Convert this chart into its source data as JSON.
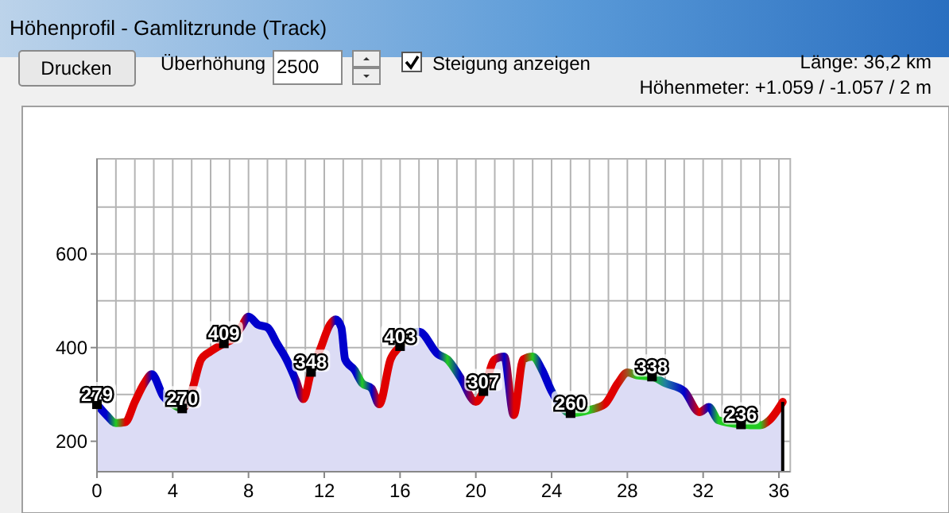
{
  "chart_data": {
    "type": "area",
    "title": "Höhenprofil - Gamlitzrunde (Track)",
    "annotations": [
      "Drucken",
      "Überhöhung",
      "2500",
      "Steigung anzeigen",
      "Länge: 36,2 km",
      "Höhenmeter: +1.059 / -1.057 / 2 m",
      {
        "text": "279",
        "x": 0,
        "y": 279
      },
      {
        "text": "270",
        "x": 4.5,
        "y": 270
      },
      {
        "text": "409",
        "x": 6.7,
        "y": 409
      },
      {
        "text": "348",
        "x": 11.3,
        "y": 348
      },
      {
        "text": "403",
        "x": 16,
        "y": 403
      },
      {
        "text": "307",
        "x": 20.4,
        "y": 307
      },
      {
        "text": "260",
        "x": 25,
        "y": 260
      },
      {
        "text": "338",
        "x": 29.3,
        "y": 338
      },
      {
        "text": "236",
        "x": 34,
        "y": 236
      }
    ],
    "x": [
      0,
      0.5,
      1,
      1.5,
      2,
      2.5,
      2.9,
      3.5,
      4,
      4.5,
      5,
      5.5,
      6,
      6.7,
      7.2,
      7.6,
      8,
      8.5,
      9,
      9.5,
      10,
      10.5,
      10.9,
      11.3,
      11.8,
      12.3,
      12.6,
      12.9,
      13.1,
      13.6,
      14,
      14.5,
      14.9,
      15.5,
      16,
      16.6,
      17,
      18,
      18.5,
      19.2,
      20,
      20.4,
      21,
      21.5,
      22,
      22.5,
      23,
      23.5,
      24,
      25,
      26,
      26.8,
      27.5,
      28,
      28.5,
      29.3,
      30,
      31,
      31.8,
      32.3,
      32.8,
      34,
      35,
      35.5,
      36.2
    ],
    "series": [
      {
        "color": "#dcdcf5",
        "values": [
          279,
          256,
          239,
          241,
          284,
          324,
          343,
          296,
          279,
          270,
          307,
          375,
          392,
          409,
          420,
          443,
          466,
          449,
          443,
          409,
          375,
          330,
          290,
          348,
          398,
          449,
          460,
          443,
          375,
          352,
          324,
          313,
          279,
          375,
          403,
          432,
          434,
          386,
          375,
          335,
          284,
          307,
          375,
          381,
          256,
          375,
          381,
          352,
          307,
          260,
          267,
          279,
          324,
          347,
          341,
          338,
          324,
          307,
          262,
          273,
          245,
          236,
          234,
          245,
          284
        ],
        "colors": [
          "#0000cc",
          "#0000cc",
          "#22cc22",
          "#e00000",
          "#e00000",
          "#e00000",
          "#0000cc",
          "#0000cc",
          "#22cc22",
          "#202020",
          "#e00000",
          "#e00000",
          "#e00000",
          "#e00000",
          "#e00000",
          "#e00000",
          "#0000cc",
          "#0000cc",
          "#0000cc",
          "#0000cc",
          "#0000cc",
          "#0000cc",
          "#e00000",
          "#e00000",
          "#e00000",
          "#e00000",
          "#0000cc",
          "#0000cc",
          "#0000cc",
          "#0000cc",
          "#22cc22",
          "#0000cc",
          "#e00000",
          "#e00000",
          "#e00000",
          "#22cc22",
          "#0000cc",
          "#0000cc",
          "#22cc22",
          "#0000cc",
          "#e00000",
          "#e00000",
          "#e00000",
          "#0000cc",
          "#e00000",
          "#e00000",
          "#22cc22",
          "#0000cc",
          "#0000cc",
          "#22cc22",
          "#22cc22",
          "#e00000",
          "#e00000",
          "#a05020",
          "#22cc22",
          "#22cc22",
          "#2080a0",
          "#0000cc",
          "#e00000",
          "#0000cc",
          "#22cc22",
          "#22cc22",
          "#22cc22",
          "#e00000",
          "#e00000"
        ]
      }
    ],
    "ref_lines": [
      {
        "axis": "x",
        "value": 36.2,
        "color": "#000000"
      }
    ],
    "xlim": [
      0,
      36.6
    ],
    "ylim": [
      135,
      803
    ],
    "xticks": [
      0,
      {
        "value": 1,
        "label": null
      },
      {
        "value": 2,
        "label": null
      },
      {
        "value": 3,
        "label": null
      },
      4,
      {
        "value": 5,
        "label": null
      },
      {
        "value": 6,
        "label": null
      },
      {
        "value": 7,
        "label": null
      },
      8,
      {
        "value": 9,
        "label": null
      },
      {
        "value": 10,
        "label": null
      },
      {
        "value": 11,
        "label": null
      },
      12,
      {
        "value": 13,
        "label": null
      },
      {
        "value": 14,
        "label": null
      },
      {
        "value": 15,
        "label": null
      },
      16,
      {
        "value": 17,
        "label": null
      },
      {
        "value": 18,
        "label": null
      },
      {
        "value": 19,
        "label": null
      },
      20,
      {
        "value": 21,
        "label": null
      },
      {
        "value": 22,
        "label": null
      },
      {
        "value": 23,
        "label": null
      },
      24,
      {
        "value": 25,
        "label": null
      },
      {
        "value": 26,
        "label": null
      },
      {
        "value": 27,
        "label": null
      },
      28,
      {
        "value": 29,
        "label": null
      },
      {
        "value": 30,
        "label": null
      },
      {
        "value": 31,
        "label": null
      },
      32,
      {
        "value": 33,
        "label": null
      },
      {
        "value": 34,
        "label": null
      },
      {
        "value": 35,
        "label": null
      },
      36
    ],
    "yticks": [
      200,
      {
        "value": 300,
        "label": null
      },
      400,
      {
        "value": 500,
        "label": null
      },
      600,
      {
        "value": 700,
        "label": null
      }
    ],
    "grid": true
  }
}
